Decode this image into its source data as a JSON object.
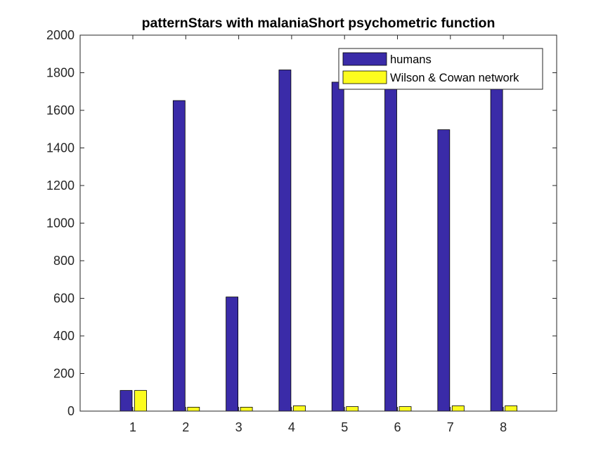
{
  "chart_data": {
    "type": "bar",
    "title": "patternStars with malaniaShort psychometric function",
    "xlabel": "",
    "ylabel": "",
    "categories": [
      "1",
      "2",
      "3",
      "4",
      "5",
      "6",
      "7",
      "8"
    ],
    "ylim": [
      0,
      2000
    ],
    "yticks": [
      0,
      200,
      400,
      600,
      800,
      1000,
      1200,
      1400,
      1600,
      1800,
      2000
    ],
    "yticks_labels": [
      "0",
      "200",
      "400",
      "600",
      "800",
      "1000",
      "1200",
      "1400",
      "1600",
      "1800",
      "2000"
    ],
    "grid": false,
    "legend": "top-right",
    "series": [
      {
        "name": "humans",
        "color": "#3a2ba8",
        "values": [
          110,
          1652,
          607,
          1815,
          1750,
          1750,
          1497,
          1750
        ]
      },
      {
        "name": "Wilson & Cowan network",
        "color": "#fcfc1e",
        "values": [
          110,
          21,
          21,
          28,
          24,
          24,
          28,
          28
        ]
      }
    ]
  }
}
